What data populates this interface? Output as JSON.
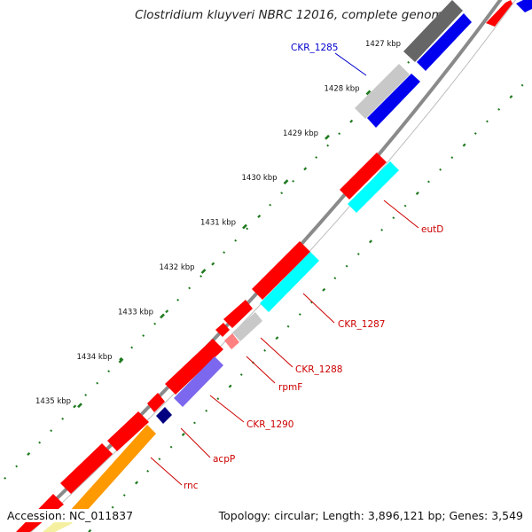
{
  "title": "Clostridium kluyveri NBRC 12016, complete genome",
  "footer": {
    "accession": "Accession: NC_011837",
    "summary": "Topology: circular; Length: 3,896,121 bp; Genes: 3,549"
  },
  "colors": {
    "backbone": "#8a8a8a",
    "tick": "#1e7a1e",
    "red": "#ff0000",
    "blue": "#0000ee",
    "cyan": "#00ffff",
    "gray_dark": "#666666",
    "gray_light": "#c8c8c8",
    "slate": "#7b68ee",
    "navy": "#000080",
    "orange": "#ff9900",
    "pink": "#ff8080",
    "label_red": "#cc0000",
    "label_blue": "#0000cc"
  },
  "scale_labels": [
    {
      "text": "1427 kbp",
      "pos": 1427
    },
    {
      "text": "1428 kbp",
      "pos": 1428
    },
    {
      "text": "1429 kbp",
      "pos": 1429
    },
    {
      "text": "1430 kbp",
      "pos": 1430
    },
    {
      "text": "1431 kbp",
      "pos": 1431
    },
    {
      "text": "1432 kbp",
      "pos": 1432
    },
    {
      "text": "1433 kbp",
      "pos": 1433
    },
    {
      "text": "1434 kbp",
      "pos": 1434
    },
    {
      "text": "1435 kbp",
      "pos": 1435
    }
  ],
  "gene_labels": [
    {
      "text": "CKR_1285",
      "color": "blue"
    },
    {
      "text": "eutD",
      "color": "red"
    },
    {
      "text": "CKR_1287",
      "color": "red"
    },
    {
      "text": "CKR_1288",
      "color": "red"
    },
    {
      "text": "rpmF",
      "color": "red"
    },
    {
      "text": "CKR_1290",
      "color": "red"
    },
    {
      "text": "acpP",
      "color": "red"
    },
    {
      "text": "rnc",
      "color": "red"
    }
  ]
}
